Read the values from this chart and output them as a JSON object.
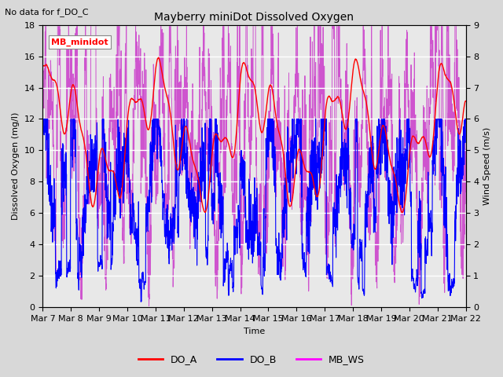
{
  "title": "Mayberry miniDot Dissolved Oxygen",
  "subtitle": "No data for f_DO_C",
  "xlabel": "Time",
  "ylabel_left": "Dissolved Oxygen (mg/l)",
  "ylabel_right": "Wind Speed (m/s)",
  "ylim_left": [
    0,
    18
  ],
  "ylim_right": [
    0.0,
    9.0
  ],
  "yticks_left": [
    0,
    2,
    4,
    6,
    8,
    10,
    12,
    14,
    16,
    18
  ],
  "yticks_right": [
    0.0,
    1.0,
    2.0,
    3.0,
    4.0,
    5.0,
    6.0,
    7.0,
    8.0,
    9.0
  ],
  "xtick_labels": [
    "Mar 7",
    "Mar 8",
    "Mar 9",
    "Mar 10",
    "Mar 11",
    "Mar 12",
    "Mar 13",
    "Mar 14",
    "Mar 15",
    "Mar 16",
    "Mar 17",
    "Mar 18",
    "Mar 19",
    "Mar 20",
    "Mar 21",
    "Mar 22"
  ],
  "legend_entries": [
    "DO_A",
    "DO_B",
    "MB_WS"
  ],
  "legend_colors": [
    "red",
    "blue",
    "magenta"
  ],
  "line_colors": {
    "DO_A": "red",
    "DO_B": "blue",
    "MB_WS": "#cc44cc"
  },
  "annotation_box": {
    "text": "MB_minidot",
    "color": "red",
    "bg": "white"
  },
  "background_color": "#d8d8d8",
  "plot_bg_color": "#e8e8e8",
  "n_days": 15,
  "seed": 42
}
